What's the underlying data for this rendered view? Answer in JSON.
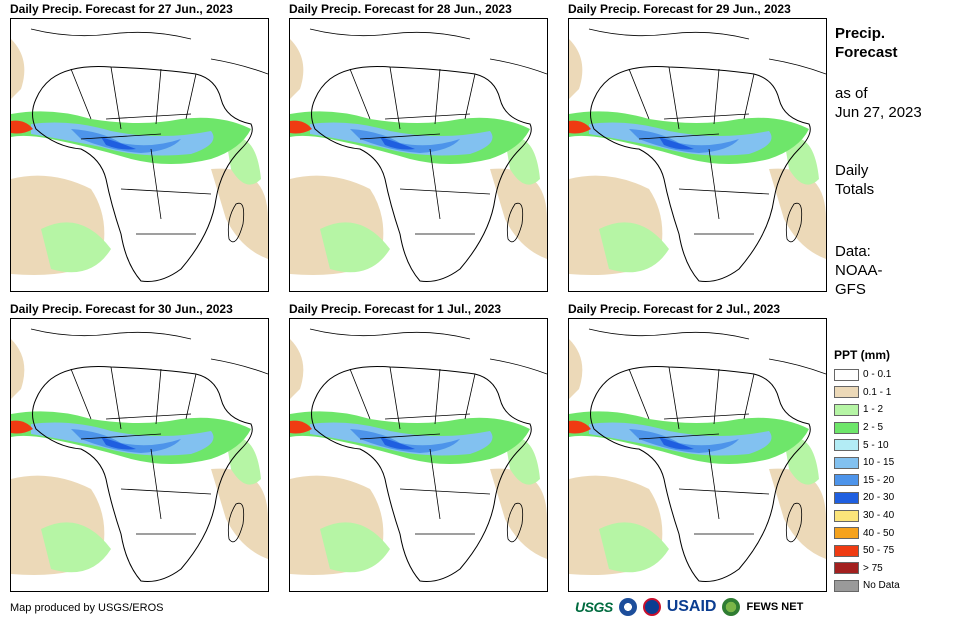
{
  "panels": [
    {
      "title": "Daily Precip. Forecast for 27 Jun., 2023"
    },
    {
      "title": "Daily Precip. Forecast for 28 Jun., 2023"
    },
    {
      "title": "Daily Precip. Forecast for 29 Jun., 2023"
    },
    {
      "title": "Daily Precip. Forecast for 30 Jun., 2023"
    },
    {
      "title": "Daily Precip. Forecast for 1 Jul., 2023"
    },
    {
      "title": "Daily Precip. Forecast for 2 Jul., 2023"
    }
  ],
  "sidebar": {
    "title_line1": "Precip.",
    "title_line2": "Forecast",
    "asof_line1": "as of",
    "asof_line2": "Jun 27, 2023",
    "totals_line1": "Daily",
    "totals_line2": "Totals",
    "data_line1": "Data:",
    "data_line2": "NOAA-",
    "data_line3": "GFS"
  },
  "legend": {
    "title": "PPT (mm)",
    "items": [
      {
        "label": "0 - 0.1",
        "color": "#ffffff"
      },
      {
        "label": "0.1 - 1",
        "color": "#ecd9b8"
      },
      {
        "label": "1 - 2",
        "color": "#b6f5a5"
      },
      {
        "label": "2 - 5",
        "color": "#6ee66a"
      },
      {
        "label": "5 - 10",
        "color": "#b3ecf5"
      },
      {
        "label": "10 - 15",
        "color": "#82c1f0"
      },
      {
        "label": "15 - 20",
        "color": "#4d94ea"
      },
      {
        "label": "20 - 30",
        "color": "#1f5fe0"
      },
      {
        "label": "30 - 40",
        "color": "#fbe47a"
      },
      {
        "label": "40 - 50",
        "color": "#f5a21c"
      },
      {
        "label": "50 - 75",
        "color": "#ef3b12"
      },
      {
        "label": "> 75",
        "color": "#a3201f"
      },
      {
        "label": "No Data",
        "color": "#9a9a9a"
      }
    ]
  },
  "credit": "Map produced by USGS/EROS",
  "logos": {
    "usgs": "USGS",
    "usaid": "USAID",
    "fews": "FEWS NET"
  }
}
